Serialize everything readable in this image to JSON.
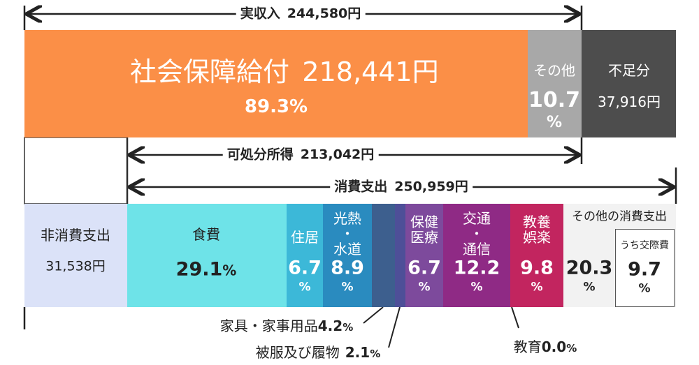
{
  "income_arrow": {
    "label": "実収入",
    "amount": "244,580円"
  },
  "top_bar": {
    "benefit": {
      "label": "社会保障給付",
      "amount": "218,441円",
      "percent": "89.3%"
    },
    "other": {
      "label": "その他",
      "value": "10.7",
      "unit": "%"
    },
    "shortfall": {
      "label": "不足分",
      "amount": "37,916円"
    }
  },
  "disposable_arrow": {
    "label": "可処分所得",
    "amount": "213,042円"
  },
  "consumption_arrow": {
    "label": "消費支出",
    "amount": "250,959円"
  },
  "non_consumption": {
    "label": "非消費支出",
    "amount": "31,538円"
  },
  "segments": [
    {
      "label_lines": [
        "食費"
      ],
      "value": "29.1",
      "unit": "%"
    },
    {
      "label_lines": [
        "住居"
      ],
      "value": "6.7",
      "unit": "%"
    },
    {
      "label_lines": [
        "光熱",
        "・",
        "水道"
      ],
      "value": "8.9",
      "unit": "%"
    },
    {
      "label_lines": [
        "保健",
        "医療"
      ],
      "value": "6.7",
      "unit": "%"
    },
    {
      "label_lines": [
        "交通",
        "・",
        "通信"
      ],
      "value": "12.2",
      "unit": "%"
    },
    {
      "label_lines": [
        "教養",
        "娯楽"
      ],
      "value": "9.8",
      "unit": "%"
    },
    {
      "label_lines": [
        "その他の消費支出"
      ],
      "value": "20.3",
      "unit": "%"
    }
  ],
  "entertainment_sub": {
    "label": "うち交際費",
    "value": "9.7",
    "unit": "%"
  },
  "callouts": [
    {
      "label": "家具・家事用品",
      "value": "4.2",
      "unit": "%"
    },
    {
      "label": "被服及び履物",
      "value": "2.1",
      "unit": "%"
    },
    {
      "label": "教育",
      "value": "0.0",
      "unit": "%"
    }
  ]
}
